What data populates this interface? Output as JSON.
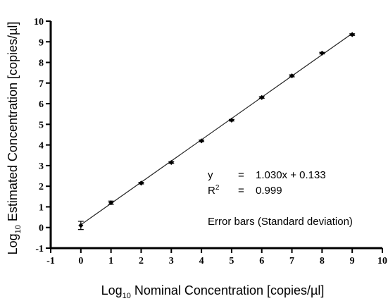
{
  "chart_data": {
    "type": "scatter",
    "x": [
      0,
      1,
      2,
      3,
      4,
      5,
      6,
      7,
      8,
      9
    ],
    "y": [
      0.1,
      1.2,
      2.15,
      3.15,
      4.2,
      5.2,
      6.3,
      7.35,
      8.45,
      9.35
    ],
    "y_error": [
      0.2,
      0.08,
      0.04,
      0.04,
      0.04,
      0.04,
      0.04,
      0.05,
      0.04,
      0.04
    ],
    "fit": {
      "slope": 1.03,
      "intercept": 0.133
    },
    "xlim": [
      -1,
      10
    ],
    "ylim": [
      -1,
      10
    ],
    "xticks": [
      "-1",
      "0",
      "1",
      "2",
      "3",
      "4",
      "5",
      "6",
      "7",
      "8",
      "9",
      "10"
    ],
    "yticks": [
      "-1",
      "0",
      "1",
      "2",
      "3",
      "4",
      "5",
      "6",
      "7",
      "8",
      "9",
      "10"
    ],
    "xlabel": {
      "prefix": "Log",
      "sub": "10",
      "rest": " Nominal Concentration [copies/µl]"
    },
    "ylabel": {
      "prefix": "Log",
      "sub": "10",
      "rest": " Estimated Concentration [copies/µl]"
    },
    "annotations": {
      "eq_lhs": "y",
      "eq_eq": "=",
      "eq_rhs": "1.030x + 0.133",
      "r2_lhs": "R",
      "r2_sup": "2",
      "r2_eq": "=",
      "r2_rhs": "0.999",
      "note": "Error bars (Standard deviation)"
    },
    "grid": false
  }
}
